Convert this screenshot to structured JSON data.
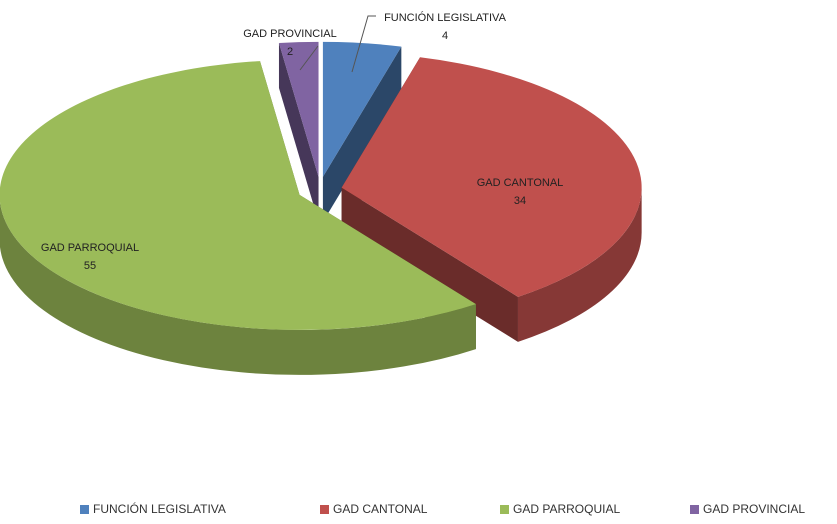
{
  "chart_data": {
    "type": "pie",
    "categories": [
      "FUNCIÓN LEGISLATIVA",
      "GAD CANTONAL",
      "GAD PARROQUIAL",
      "GAD PROVINCIAL"
    ],
    "values": [
      4,
      34,
      55,
      2
    ],
    "colors": [
      "#4f81bd",
      "#c0504d",
      "#9bbb59",
      "#8064a2"
    ],
    "legend": "bottom"
  }
}
